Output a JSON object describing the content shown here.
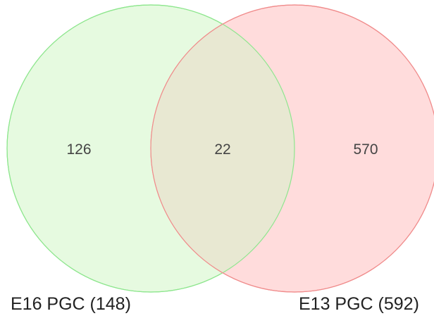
{
  "diagram": {
    "type": "venn",
    "sets": [
      {
        "label": "E16 PGC (148)",
        "only_count": "126",
        "fill": "#e6fae0",
        "stroke": "#8ee68e"
      },
      {
        "label": "E13 PGC (592)",
        "only_count": "570",
        "fill": "#ffdcdc",
        "stroke": "#f08c8c"
      }
    ],
    "overlap": {
      "count": "22",
      "fill": "#e8e8d2"
    }
  }
}
